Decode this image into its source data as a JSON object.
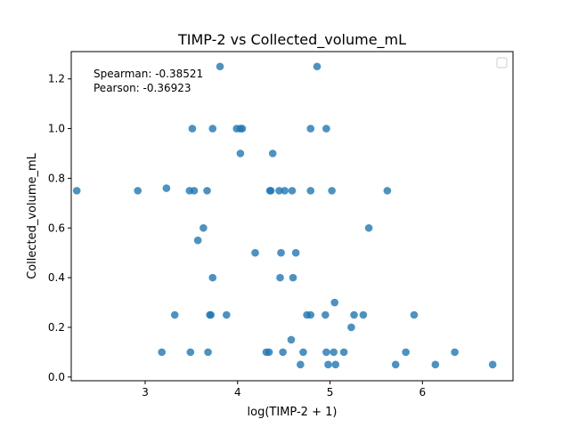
{
  "chart_data": {
    "type": "scatter",
    "title": "TIMP-2 vs Collected_volume_mL",
    "xlabel": "log(TIMP-2 + 1)",
    "ylabel": "Collected_volume_mL",
    "xlim": [
      2.2,
      6.98
    ],
    "ylim": [
      -0.015,
      1.31
    ],
    "xticks": [
      3,
      4,
      5,
      6
    ],
    "xtick_labels": [
      "3",
      "4",
      "5",
      "6"
    ],
    "yticks": [
      0.0,
      0.2,
      0.4,
      0.6,
      0.8,
      1.0,
      1.2
    ],
    "ytick_labels": [
      "0.0",
      "0.2",
      "0.4",
      "0.6",
      "0.8",
      "1.0",
      "1.2"
    ],
    "grid": false,
    "legend": "top-right, empty",
    "marker_color": "#1f77b4",
    "annotations": [
      "Spearman: -0.38521",
      "Pearson: -0.36923"
    ],
    "points": [
      [
        2.26,
        0.75
      ],
      [
        2.92,
        0.75
      ],
      [
        3.23,
        0.76
      ],
      [
        3.18,
        0.1
      ],
      [
        3.32,
        0.25
      ],
      [
        3.48,
        0.75
      ],
      [
        3.53,
        0.75
      ],
      [
        3.51,
        1.0
      ],
      [
        3.57,
        0.55
      ],
      [
        3.63,
        0.6
      ],
      [
        3.67,
        0.75
      ],
      [
        3.73,
        1.0
      ],
      [
        3.81,
        1.25
      ],
      [
        3.49,
        0.1
      ],
      [
        3.68,
        0.1
      ],
      [
        3.7,
        0.25
      ],
      [
        3.71,
        0.25
      ],
      [
        3.73,
        0.4
      ],
      [
        3.88,
        0.25
      ],
      [
        3.99,
        1.0
      ],
      [
        4.03,
        1.0
      ],
      [
        4.05,
        1.0
      ],
      [
        4.03,
        0.9
      ],
      [
        4.19,
        0.5
      ],
      [
        4.31,
        0.1
      ],
      [
        4.34,
        0.1
      ],
      [
        4.35,
        0.75
      ],
      [
        4.36,
        0.75
      ],
      [
        4.38,
        0.9
      ],
      [
        4.45,
        0.75
      ],
      [
        4.51,
        0.75
      ],
      [
        4.59,
        0.75
      ],
      [
        4.47,
        0.5
      ],
      [
        4.46,
        0.4
      ],
      [
        4.6,
        0.4
      ],
      [
        4.63,
        0.5
      ],
      [
        4.49,
        0.1
      ],
      [
        4.58,
        0.15
      ],
      [
        4.68,
        0.05
      ],
      [
        4.71,
        0.1
      ],
      [
        4.75,
        0.25
      ],
      [
        4.79,
        0.25
      ],
      [
        4.79,
        0.75
      ],
      [
        4.79,
        1.0
      ],
      [
        4.86,
        1.25
      ],
      [
        4.96,
        1.0
      ],
      [
        4.95,
        0.25
      ],
      [
        4.96,
        0.1
      ],
      [
        4.98,
        0.05
      ],
      [
        5.02,
        0.75
      ],
      [
        5.04,
        0.1
      ],
      [
        5.05,
        0.3
      ],
      [
        5.06,
        0.05
      ],
      [
        5.15,
        0.1
      ],
      [
        5.23,
        0.2
      ],
      [
        5.26,
        0.25
      ],
      [
        5.36,
        0.25
      ],
      [
        5.42,
        0.6
      ],
      [
        5.62,
        0.75
      ],
      [
        5.71,
        0.05
      ],
      [
        5.82,
        0.1
      ],
      [
        5.91,
        0.25
      ],
      [
        6.14,
        0.05
      ],
      [
        6.35,
        0.1
      ],
      [
        6.76,
        0.05
      ]
    ]
  }
}
